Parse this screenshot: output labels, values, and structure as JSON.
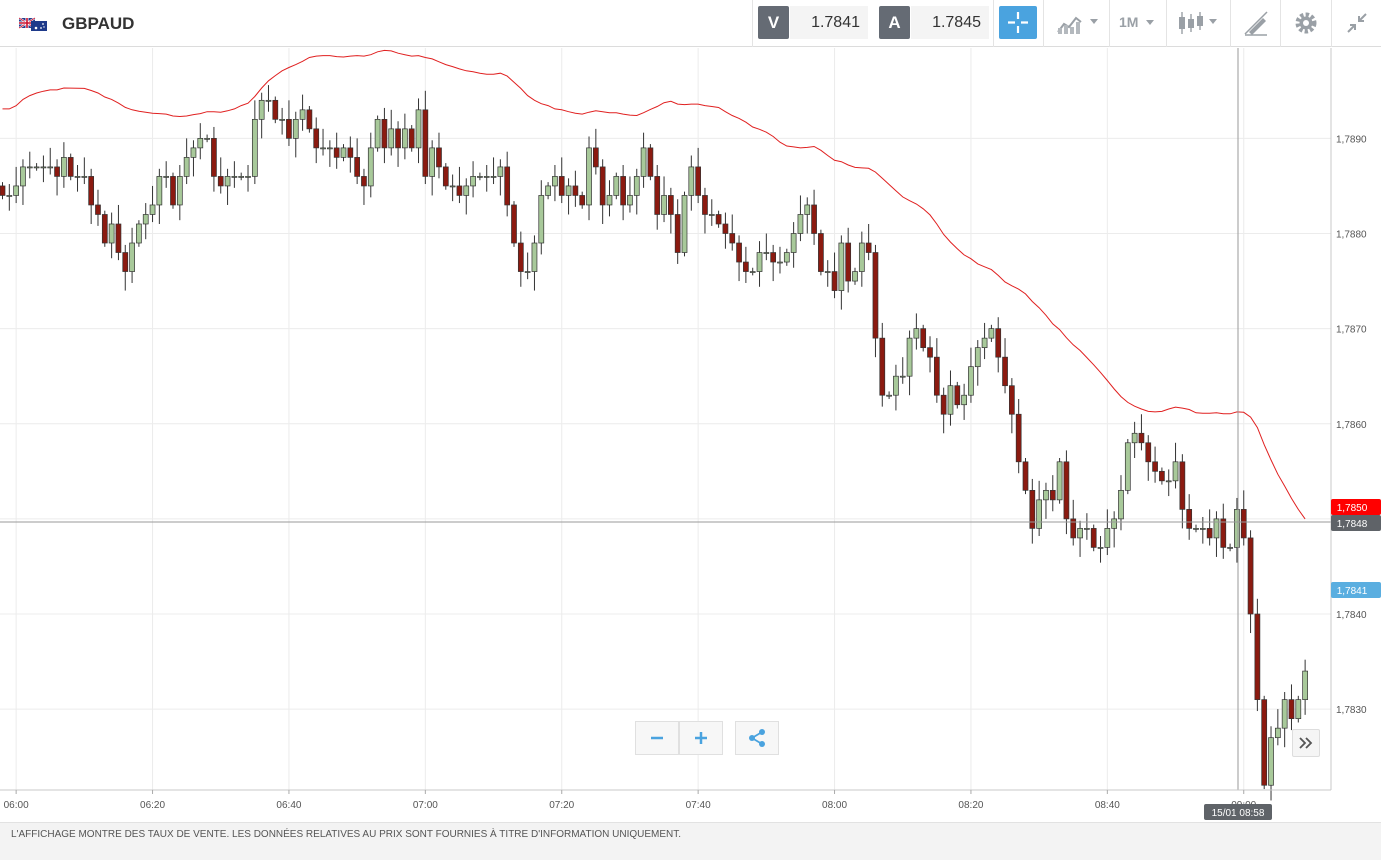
{
  "header": {
    "symbol": "GBPAUD",
    "sell_label": "V",
    "sell_price": "1.7841",
    "buy_label": "A",
    "buy_price": "1.7845",
    "timeframe": "1M"
  },
  "footer": {
    "disclaimer": "L'AFFICHAGE MONTRE DES TAUX DE VENTE. LES DONNÉES RELATIVES AU PRIX SONT FOURNIES À TITRE D'INFORMATION UNIQUEMENT."
  },
  "crosshair": {
    "price_label": "1,7848",
    "time_label": "15/01 08:58"
  },
  "price_tags": {
    "ma_value": "1,7850",
    "sell_value": "1,7841"
  },
  "colors": {
    "up": "#a8c99a",
    "down": "#8b1a10",
    "ma": "#e02020",
    "accent": "#4aa3df",
    "ma_tag": "#ff0000",
    "sell_tag": "#5aaee0",
    "cross_tag": "#5f6368"
  },
  "icons": [
    "crosshair-icon",
    "chart-type-icon",
    "candles-icon",
    "draw-icon",
    "gear-icon",
    "collapse-icon",
    "minus-icon",
    "plus-icon",
    "share-icon",
    "double-chevron-right-icon"
  ],
  "chart_data": {
    "type": "candlestick",
    "instrument": "GBPAUD",
    "interval": "1M",
    "x_ticks": [
      "06:00",
      "06:20",
      "06:40",
      "07:00",
      "07:20",
      "07:40",
      "08:00",
      "08:20",
      "08:40",
      "09:00"
    ],
    "y_ticks": [
      "1,7830",
      "1,7840",
      "1,7850",
      "1,7860",
      "1,7870",
      "1,7880",
      "1,7890"
    ],
    "ylim": [
      1.78215,
      1.78995
    ],
    "start_time": "05:58",
    "crosshair_price": 1.7848,
    "sell_price": 1.7841,
    "ma_last": 1.785,
    "closes": [
      1.7884,
      1.7884,
      1.7885,
      1.7887,
      1.7887,
      1.7887,
      1.7887,
      1.7887,
      1.7886,
      1.7888,
      1.7886,
      1.7886,
      1.7886,
      1.7883,
      1.7882,
      1.7879,
      1.7881,
      1.7878,
      1.7876,
      1.7879,
      1.7881,
      1.7882,
      1.7883,
      1.7886,
      1.7886,
      1.7883,
      1.7886,
      1.7888,
      1.7889,
      1.789,
      1.789,
      1.7886,
      1.7885,
      1.7886,
      1.7886,
      1.7886,
      1.7886,
      1.7892,
      1.7894,
      1.7894,
      1.7892,
      1.7892,
      1.789,
      1.7892,
      1.7893,
      1.7891,
      1.7889,
      1.7889,
      1.7889,
      1.7888,
      1.7889,
      1.7888,
      1.7886,
      1.7885,
      1.7889,
      1.7892,
      1.7889,
      1.7891,
      1.7889,
      1.7891,
      1.7889,
      1.7893,
      1.7886,
      1.7889,
      1.7887,
      1.7885,
      1.7885,
      1.7884,
      1.7885,
      1.7886,
      1.7886,
      1.7886,
      1.7886,
      1.7887,
      1.7883,
      1.7879,
      1.7876,
      1.7876,
      1.7879,
      1.7884,
      1.7885,
      1.7886,
      1.7884,
      1.7885,
      1.7884,
      1.7883,
      1.7889,
      1.7887,
      1.7883,
      1.7884,
      1.7886,
      1.7883,
      1.7884,
      1.7886,
      1.7889,
      1.7886,
      1.7882,
      1.7884,
      1.7882,
      1.7878,
      1.7884,
      1.7887,
      1.7884,
      1.7882,
      1.7882,
      1.7881,
      1.788,
      1.7879,
      1.7877,
      1.7876,
      1.7876,
      1.7878,
      1.7878,
      1.7877,
      1.7877,
      1.7878,
      1.788,
      1.7882,
      1.7883,
      1.788,
      1.7876,
      1.7876,
      1.7874,
      1.7879,
      1.7875,
      1.7876,
      1.7879,
      1.7878,
      1.7869,
      1.7863,
      1.7863,
      1.7865,
      1.7865,
      1.7869,
      1.787,
      1.7868,
      1.7867,
      1.7863,
      1.7861,
      1.7864,
      1.7862,
      1.7863,
      1.7866,
      1.7868,
      1.7869,
      1.787,
      1.7867,
      1.7864,
      1.7861,
      1.7856,
      1.7853,
      1.7849,
      1.7852,
      1.7853,
      1.7852,
      1.7856,
      1.785,
      1.7848,
      1.7849,
      1.7849,
      1.7847,
      1.7847,
      1.7849,
      1.785,
      1.7853,
      1.7858,
      1.7859,
      1.7858,
      1.7856,
      1.7855,
      1.7854,
      1.7854,
      1.7856,
      1.7851,
      1.7849,
      1.7849,
      1.7849,
      1.7848,
      1.785,
      1.7847,
      1.7847,
      1.7851,
      1.7848,
      1.784,
      1.7831,
      1.7822,
      1.7827,
      1.7828,
      1.7831,
      1.7829,
      1.7831,
      1.7834
    ]
  }
}
